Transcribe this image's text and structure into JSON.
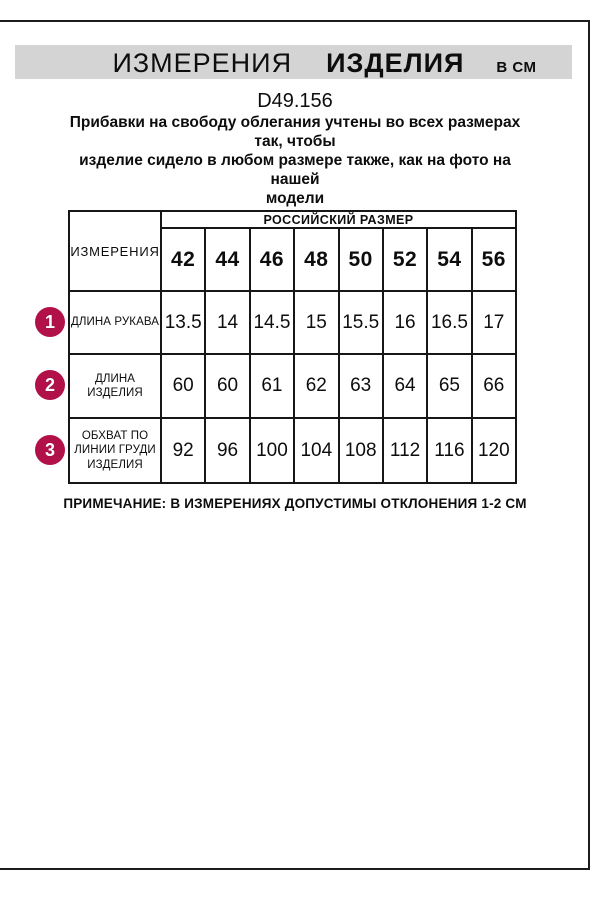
{
  "banner": {
    "title_regular": "ИЗМЕРЕНИЯ",
    "title_bold": "ИЗДЕЛИЯ",
    "unit": "В СМ"
  },
  "product_code": "D49.156",
  "description_lines": [
    "Прибавки на свободу облегания учтены во всех размерах так, чтобы",
    "изделие сидело в любом размере также, как на фото на нашей",
    "модели"
  ],
  "table": {
    "size_group_header": "РОССИЙСКИЙ РАЗМЕР",
    "measurements_header": "ИЗМЕРЕНИЯ",
    "sizes": [
      "42",
      "44",
      "46",
      "48",
      "50",
      "52",
      "54",
      "56"
    ],
    "rows": [
      {
        "num": "1",
        "label": "ДЛИНА РУКАВА",
        "values": [
          "13.5",
          "14",
          "14.5",
          "15",
          "15.5",
          "16",
          "16.5",
          "17"
        ]
      },
      {
        "num": "2",
        "label": "ДЛИНА\nИЗДЕЛИЯ",
        "values": [
          "60",
          "60",
          "61",
          "62",
          "63",
          "64",
          "65",
          "66"
        ]
      },
      {
        "num": "3",
        "label": "ОБХВАТ ПО\nЛИНИИ ГРУДИ\nИЗДЕЛИЯ",
        "values": [
          "92",
          "96",
          "100",
          "104",
          "108",
          "112",
          "116",
          "120"
        ]
      }
    ]
  },
  "note": "ПРИМЕЧАНИЕ: В ИЗМЕРЕНИЯХ ДОПУСТИМЫ ОТКЛОНЕНИЯ 1-2 СМ",
  "colors": {
    "accent": "#b21048",
    "banner_bg": "#d4d4d4",
    "border": "#1c1c1c"
  }
}
